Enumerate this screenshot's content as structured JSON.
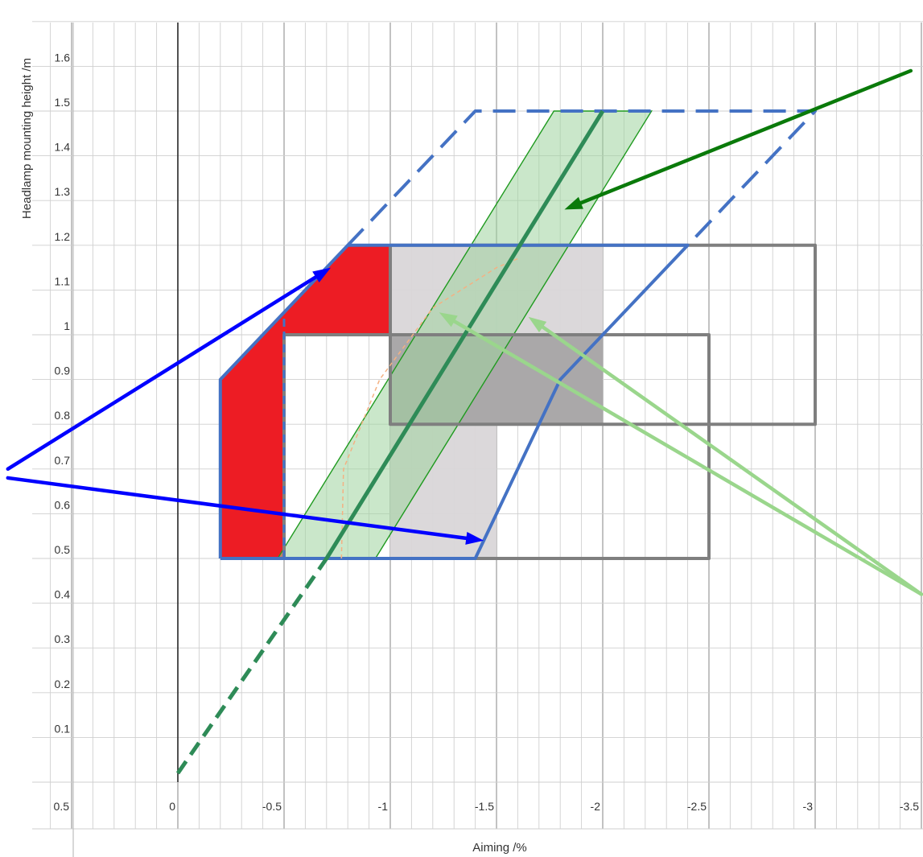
{
  "chart_data": {
    "type": "area",
    "xlabel": "Aiming /%",
    "ylabel": "Headlamp mounting height /m",
    "xlim": [
      0.5,
      -3.5
    ],
    "ylim": [
      0,
      1.65
    ],
    "grid": true,
    "x_ticks": [
      {
        "value": 0.5,
        "label": "0.5"
      },
      {
        "value": 0,
        "label": "0"
      },
      {
        "value": -0.5,
        "label": "-0.5"
      },
      {
        "value": -1,
        "label": "-1"
      },
      {
        "value": -1.5,
        "label": "-1.5"
      },
      {
        "value": -2,
        "label": "-2"
      },
      {
        "value": -2.5,
        "label": "-2.5"
      },
      {
        "value": -3,
        "label": "-3"
      },
      {
        "value": -3.5,
        "label": "-3.5"
      }
    ],
    "y_ticks": [
      {
        "value": 0.1,
        "label": "0.1"
      },
      {
        "value": 0.2,
        "label": "0.2"
      },
      {
        "value": 0.3,
        "label": "0.3"
      },
      {
        "value": 0.4,
        "label": "0.4"
      },
      {
        "value": 0.5,
        "label": "0.5"
      },
      {
        "value": 0.6,
        "label": "0.6"
      },
      {
        "value": 0.7,
        "label": "0.7"
      },
      {
        "value": 0.8,
        "label": "0.8"
      },
      {
        "value": 0.9,
        "label": "0.9"
      },
      {
        "value": 1,
        "label": "1"
      },
      {
        "value": 1.1,
        "label": "1.1"
      },
      {
        "value": 1.2,
        "label": "1.2"
      },
      {
        "value": 1.3,
        "label": "1.3"
      },
      {
        "value": 1.4,
        "label": "1.4"
      },
      {
        "value": 1.5,
        "label": "1.5"
      },
      {
        "value": 1.6,
        "label": "1.6"
      }
    ],
    "colors": {
      "red": "#ed1c24",
      "blue": "#4472c4",
      "dark_green": "#2e8b57",
      "green_fill": "#a9d8a9",
      "grey": "#7f7f7f",
      "light_grey": "#d9d6d8",
      "arrow_blue": "#0000ff",
      "arrow_dark_green": "#0a7a0a",
      "arrow_light_green": "#9ad68c",
      "orange": "#f4b183"
    },
    "regions": [
      {
        "id": "light-grey-area-upper",
        "fill": "#d9d6d8",
        "opacity": 0.95,
        "points": [
          [
            -1,
            1
          ],
          [
            -1,
            1.2
          ],
          [
            -2,
            1.2
          ],
          [
            -2,
            0.8
          ],
          [
            -1,
            0.8
          ]
        ]
      },
      {
        "id": "light-grey-area-lower",
        "fill": "#d9d6d8",
        "opacity": 0.95,
        "points": [
          [
            -1,
            0.8
          ],
          [
            -1.5,
            0.8
          ],
          [
            -1.5,
            0.5
          ],
          [
            -1,
            0.5
          ]
        ]
      },
      {
        "id": "dark-grey-area",
        "fill": "#a8a5a6",
        "opacity": 0.95,
        "points": [
          [
            -1,
            1
          ],
          [
            -2,
            1
          ],
          [
            -2,
            0.8
          ],
          [
            -1,
            0.8
          ]
        ]
      },
      {
        "id": "red-area-upper",
        "fill": "#ed1c24",
        "opacity": 1,
        "points": [
          [
            -0.5,
            1.0
          ],
          [
            -0.5,
            1.05
          ],
          [
            -0.8,
            1.2
          ],
          [
            -1,
            1.2
          ],
          [
            -1,
            1.0
          ]
        ]
      },
      {
        "id": "red-area-lower",
        "fill": "#ed1c24",
        "opacity": 1,
        "points": [
          [
            -0.2,
            0.5
          ],
          [
            -0.2,
            0.9
          ],
          [
            -0.5,
            1.05
          ],
          [
            -0.5,
            0.5
          ]
        ]
      },
      {
        "id": "green-band",
        "fill": "#9fd49f",
        "opacity": 0.55,
        "stroke": "#1f9a1f",
        "points": [
          [
            -0.47,
            0.5
          ],
          [
            -1.77,
            1.5
          ],
          [
            -2.23,
            1.5
          ],
          [
            -0.93,
            0.5
          ]
        ]
      }
    ],
    "lines": [
      {
        "id": "grey-rect-wide",
        "stroke": "#7f7f7f",
        "width": 4,
        "dash": "",
        "closed": true,
        "points": [
          [
            -0.5,
            1.0
          ],
          [
            -2.5,
            1.0
          ],
          [
            -2.5,
            0.5
          ],
          [
            -0.5,
            0.5
          ]
        ]
      },
      {
        "id": "grey-rect-upper",
        "stroke": "#7f7f7f",
        "width": 4,
        "dash": "",
        "closed": true,
        "points": [
          [
            -1,
            1.2
          ],
          [
            -3,
            1.2
          ],
          [
            -3,
            0.8
          ],
          [
            -1,
            0.8
          ]
        ]
      },
      {
        "id": "blue-solid-boundary",
        "stroke": "#4472c4",
        "width": 4,
        "dash": "",
        "closed": false,
        "points": [
          [
            -0.2,
            0.5
          ],
          [
            -0.2,
            0.9
          ],
          [
            -0.8,
            1.2
          ],
          [
            -2.4,
            1.2
          ],
          [
            -1.8,
            0.9
          ],
          [
            -1.4,
            0.5
          ],
          [
            -0.2,
            0.5
          ]
        ]
      },
      {
        "id": "blue-dashed-vertical",
        "stroke": "#4472c4",
        "width": 3,
        "dash": "10,6",
        "closed": false,
        "points": [
          [
            -0.5,
            0.5
          ],
          [
            -0.5,
            1.05
          ]
        ]
      },
      {
        "id": "blue-dashed-extension",
        "stroke": "#4472c4",
        "width": 4,
        "dash": "28,14",
        "closed": false,
        "points": [
          [
            -0.8,
            1.2
          ],
          [
            -1.4,
            1.5
          ],
          [
            -3,
            1.5
          ],
          [
            -2.4,
            1.2
          ]
        ]
      },
      {
        "id": "orange-dashed-curve",
        "stroke": "#f4b183",
        "width": 1.5,
        "dash": "5,4",
        "closed": false,
        "points": [
          [
            -0.77,
            0.5
          ],
          [
            -0.78,
            0.7
          ],
          [
            -0.95,
            0.9
          ],
          [
            -1.2,
            1.06
          ],
          [
            -1.5,
            1.15
          ],
          [
            -1.6,
            1.17
          ]
        ]
      },
      {
        "id": "dark-green-solid-line",
        "stroke": "#2e8b57",
        "width": 5,
        "dash": "",
        "closed": false,
        "points": [
          [
            -0.7,
            0.5
          ],
          [
            -2,
            1.5
          ]
        ]
      },
      {
        "id": "dark-green-dashed-line",
        "stroke": "#2e8b57",
        "width": 5,
        "dash": "18,10",
        "closed": false,
        "points": [
          [
            0,
            0.02
          ],
          [
            -0.7,
            0.5
          ]
        ]
      }
    ],
    "arrows": [
      {
        "id": "blue-arrow-upper",
        "color": "#0000ff",
        "width": 4.5,
        "from": [
          0.8,
          0.7
        ],
        "to": [
          -0.72,
          1.15
        ]
      },
      {
        "id": "blue-arrow-lower",
        "color": "#0000ff",
        "width": 4.5,
        "from": [
          0.8,
          0.68
        ],
        "to": [
          -1.44,
          0.54
        ]
      },
      {
        "id": "dark-green-arrow",
        "color": "#0a7a0a",
        "width": 4.5,
        "from": [
          -3.45,
          1.59
        ],
        "to": [
          -1.82,
          1.28
        ]
      },
      {
        "id": "light-green-arrow-left",
        "color": "#9ad68c",
        "width": 4.5,
        "from": [
          -3.5,
          0.42
        ],
        "to": [
          -1.23,
          1.05
        ]
      },
      {
        "id": "light-green-arrow-right",
        "color": "#9ad68c",
        "width": 4.5,
        "from": [
          -3.5,
          0.42
        ],
        "to": [
          -1.65,
          1.04
        ]
      }
    ]
  }
}
